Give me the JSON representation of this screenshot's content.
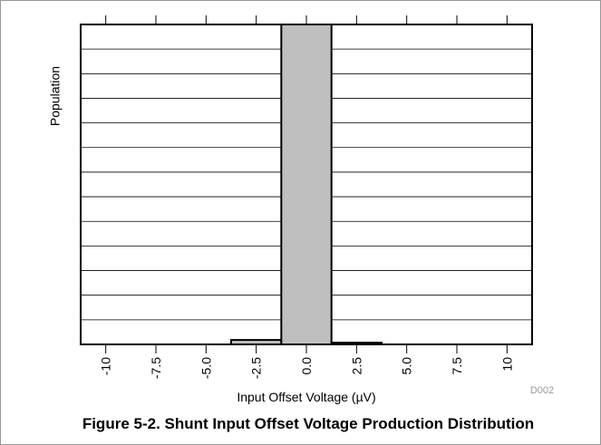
{
  "chart_data": {
    "type": "histogram",
    "caption": "Figure 5-2. Shunt Input Offset Voltage Production Distribution",
    "xlabel": "Input Offset Voltage (µV)",
    "ylabel": "Population",
    "note": "D002",
    "bins": [
      -11.25,
      -8.75,
      -6.25,
      -3.75,
      -1.25,
      1.25,
      3.75,
      6.25,
      8.75,
      11.25
    ],
    "values": [
      0,
      0,
      0,
      0.18,
      13,
      0.07,
      0,
      0,
      0
    ],
    "color": "#bfbfbf",
    "xlim": [
      -11.25,
      11.25
    ],
    "xticks": [
      -10,
      {
        "value": -7.5,
        "label": "-7.5"
      },
      {
        "value": -5,
        "label": "-5.0"
      },
      {
        "value": -2.5,
        "label": "-2.5"
      },
      {
        "value": 0,
        "label": "0.0"
      },
      {
        "value": 2.5,
        "label": "2.5"
      },
      {
        "value": 5,
        "label": "5.0"
      },
      {
        "value": 7.5,
        "label": "7.5"
      },
      10
    ],
    "ylim": [
      0,
      13
    ],
    "yticks": [
      0,
      1,
      2,
      3,
      4,
      5,
      6,
      7,
      8,
      9,
      10,
      11,
      12,
      13
    ],
    "grid": true
  }
}
